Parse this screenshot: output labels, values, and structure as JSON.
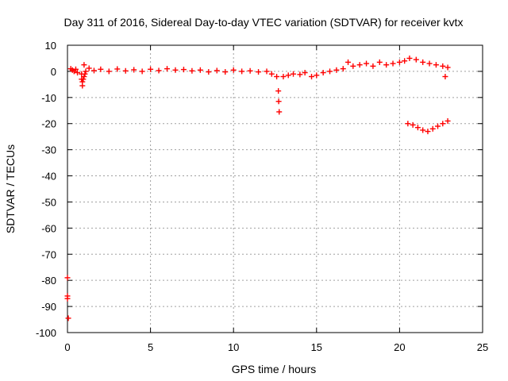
{
  "chart_data": {
    "type": "scatter",
    "title": "Day 311 of 2016, Sidereal Day-to-day VTEC variation (SDTVAR) for receiver kvtx",
    "xlabel": "GPS time / hours",
    "ylabel": "SDTVAR / TECUs",
    "xlim": [
      0,
      25
    ],
    "ylim": [
      -100,
      10
    ],
    "x_ticks": [
      "0",
      "5",
      "10",
      "15",
      "20",
      "25"
    ],
    "y_ticks": [
      "10",
      "0",
      "-10",
      "-20",
      "-30",
      "-40",
      "-50",
      "-60",
      "-70",
      "-80",
      "-90",
      "-100"
    ],
    "grid": true,
    "marker": "+",
    "series": [
      {
        "color": "#ff0000",
        "points": [
          [
            0.0,
            -79
          ],
          [
            0.0,
            -86
          ],
          [
            0.0,
            -87
          ],
          [
            0.05,
            -94.5
          ],
          [
            0.2,
            1
          ],
          [
            0.3,
            0.5
          ],
          [
            0.4,
            0
          ],
          [
            0.5,
            0.8
          ],
          [
            0.6,
            -0.5
          ],
          [
            0.85,
            -1
          ],
          [
            0.85,
            -3
          ],
          [
            0.9,
            -4
          ],
          [
            0.9,
            -5.5
          ],
          [
            0.95,
            -3
          ],
          [
            1.0,
            -2
          ],
          [
            1.0,
            2.5
          ],
          [
            1.05,
            -1
          ],
          [
            1.1,
            0
          ],
          [
            1.3,
            1.2
          ],
          [
            1.6,
            0.3
          ],
          [
            2.0,
            0.8
          ],
          [
            2.5,
            0
          ],
          [
            3.0,
            0.9
          ],
          [
            3.5,
            0.2
          ],
          [
            4.0,
            0.6
          ],
          [
            4.5,
            0
          ],
          [
            5.0,
            0.8
          ],
          [
            5.5,
            0.3
          ],
          [
            6.0,
            1.0
          ],
          [
            6.5,
            0.5
          ],
          [
            7.0,
            0.7
          ],
          [
            7.5,
            0.2
          ],
          [
            8.0,
            0.5
          ],
          [
            8.5,
            -0.2
          ],
          [
            9.0,
            0.3
          ],
          [
            9.5,
            -0.2
          ],
          [
            10.0,
            0.5
          ],
          [
            10.5,
            0
          ],
          [
            11.0,
            0.2
          ],
          [
            11.5,
            -0.2
          ],
          [
            12.0,
            0
          ],
          [
            12.3,
            -1
          ],
          [
            12.6,
            -2
          ],
          [
            12.7,
            -7.5
          ],
          [
            12.72,
            -11.5
          ],
          [
            12.75,
            -15.5
          ],
          [
            13.0,
            -2
          ],
          [
            13.3,
            -1.5
          ],
          [
            13.6,
            -1
          ],
          [
            14.0,
            -1.2
          ],
          [
            14.3,
            -0.5
          ],
          [
            14.7,
            -2
          ],
          [
            15.0,
            -1.5
          ],
          [
            15.4,
            -0.5
          ],
          [
            15.8,
            0
          ],
          [
            16.2,
            0.5
          ],
          [
            16.6,
            1
          ],
          [
            16.9,
            3.5
          ],
          [
            17.2,
            2
          ],
          [
            17.6,
            2.5
          ],
          [
            18.0,
            3
          ],
          [
            18.4,
            2
          ],
          [
            18.8,
            3.5
          ],
          [
            19.2,
            2.5
          ],
          [
            19.6,
            3
          ],
          [
            20.0,
            3.5
          ],
          [
            20.3,
            4
          ],
          [
            20.6,
            5
          ],
          [
            21.0,
            4.5
          ],
          [
            21.4,
            3.5
          ],
          [
            21.8,
            3
          ],
          [
            22.2,
            2.5
          ],
          [
            22.6,
            2
          ],
          [
            22.9,
            1.5
          ],
          [
            22.75,
            -2
          ],
          [
            20.5,
            -20
          ],
          [
            20.8,
            -20.5
          ],
          [
            21.1,
            -21.5
          ],
          [
            21.4,
            -22.5
          ],
          [
            21.7,
            -23
          ],
          [
            22.0,
            -22
          ],
          [
            22.3,
            -21
          ],
          [
            22.6,
            -20
          ],
          [
            22.9,
            -19
          ]
        ]
      }
    ]
  }
}
